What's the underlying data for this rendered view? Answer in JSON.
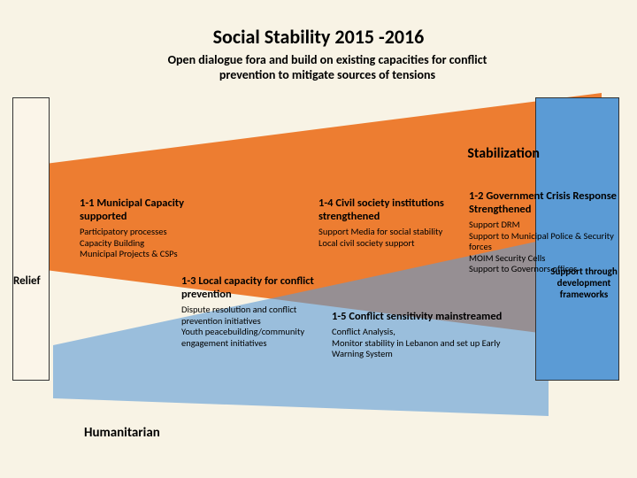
{
  "title": "Social Stability 2015 -2016",
  "subtitle": "Open dialogue fora and build on existing capacities for conflict prevention to mitigate sources of tensions",
  "relief": "Relief",
  "stabilization": "Stabilization",
  "support": "Support through development frameworks",
  "humanitarian": "Humanitarian",
  "blocks": {
    "b11": {
      "title": "1-1  Municipal Capacity supported",
      "body": "Participatory processes\nCapacity Building\nMunicipal Projects & CSPs"
    },
    "b13": {
      "title": "1-3 Local capacity for conflict prevention",
      "body": "Dispute resolution and conflict prevention initiatives\nYouth peacebuilding/community engagement initiatives"
    },
    "b14": {
      "title": "1-4 Civil society institutions strengthened",
      "body": "Support Media for social stability\nLocal civil society support"
    },
    "b15": {
      "title": "1-5 Conflict sensitivity mainstreamed",
      "body": "Conflict Analysis,\nMonitor stability in Lebanon and set up Early Warning System"
    },
    "b12": {
      "title": "1-2  Government Crisis Response Strengthened",
      "body": "Support DRM\nSupport to Municipal Police & Security forces\nMOIM Security Cells\nSupport to Governors offices"
    }
  },
  "colors": {
    "bg": "#f8f3e5",
    "orange": "#ed7d31",
    "blue": "#5b9bd5",
    "box_bg": "#fbf5e9"
  }
}
